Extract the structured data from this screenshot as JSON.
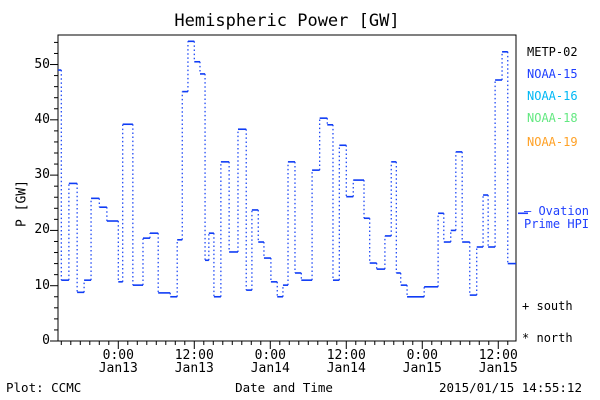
{
  "title": "Hemispheric Power [GW]",
  "footer": {
    "left": "Plot: CCMC",
    "center": "Date and Time",
    "right": "2015/01/15 14:55:12"
  },
  "legend": {
    "satellites": [
      {
        "label": "METP-02",
        "color": "#000000"
      },
      {
        "label": "NOAA-15",
        "color": "#1f3fff"
      },
      {
        "label": "NOAA-16",
        "color": "#00b8f5"
      },
      {
        "label": "NOAA-18",
        "color": "#63e881"
      },
      {
        "label": "NOAA-19",
        "color": "#ffa126"
      }
    ],
    "ovation": {
      "line1": "— Ovation",
      "line2": "Prime HPI",
      "color": "#1f3fff"
    },
    "markers": [
      {
        "symbol": "+",
        "label": "south"
      },
      {
        "symbol": "*",
        "label": "north"
      }
    ]
  },
  "colors": {
    "axis": "#000000",
    "curve": "#0f3cf5",
    "background": "#ffffff"
  },
  "chart_data": {
    "type": "line",
    "subtype": "step-stairs, solid horizontal segments joined by dotted vertical connectors",
    "series_name": "Ovation Prime HPI",
    "title": "Hemispheric Power [GW]",
    "xlabel": "Date and Time",
    "ylabel": "P [GW]",
    "x_unit": "hours since 2015-01-12 00:00 UT",
    "xlim": [
      14.48,
      86.8
    ],
    "ylim": [
      0,
      55.34
    ],
    "y_major_ticks": [
      0,
      10,
      20,
      30,
      40,
      50
    ],
    "y_minor_step": 2,
    "x_minor_step": 1.5,
    "x_major_ticks": [
      {
        "t": 24,
        "time": "0:00",
        "date": "Jan13"
      },
      {
        "t": 36,
        "time": "12:00",
        "date": "Jan13"
      },
      {
        "t": 48,
        "time": "0:00",
        "date": "Jan14"
      },
      {
        "t": 60,
        "time": "12:00",
        "date": "Jan14"
      },
      {
        "t": 72,
        "time": "0:00",
        "date": "Jan15"
      },
      {
        "t": 84,
        "time": "12:00",
        "date": "Jan15"
      }
    ],
    "ovation_marker_gw": 23.1,
    "grid": false,
    "legend_position": "right",
    "samples": [
      [
        14.3,
        49.0
      ],
      [
        15.0,
        11.0
      ],
      [
        16.2,
        28.5
      ],
      [
        17.5,
        8.8
      ],
      [
        18.6,
        11.0
      ],
      [
        19.7,
        25.8
      ],
      [
        21.0,
        24.2
      ],
      [
        22.2,
        21.7
      ],
      [
        24.0,
        10.7
      ],
      [
        24.7,
        39.2
      ],
      [
        26.3,
        10.1
      ],
      [
        27.9,
        18.6
      ],
      [
        29.0,
        19.5
      ],
      [
        30.3,
        8.7
      ],
      [
        32.2,
        8.0
      ],
      [
        33.3,
        18.3
      ],
      [
        34.1,
        45.1
      ],
      [
        35.0,
        54.2
      ],
      [
        36.0,
        50.5
      ],
      [
        36.9,
        48.3
      ],
      [
        37.7,
        14.6
      ],
      [
        38.3,
        19.5
      ],
      [
        39.1,
        8.0
      ],
      [
        40.2,
        32.4
      ],
      [
        41.5,
        16.1
      ],
      [
        42.9,
        38.3
      ],
      [
        44.2,
        9.2
      ],
      [
        45.1,
        23.7
      ],
      [
        46.1,
        17.9
      ],
      [
        47.0,
        15.0
      ],
      [
        48.1,
        10.7
      ],
      [
        49.1,
        8.0
      ],
      [
        50.0,
        10.1
      ],
      [
        50.8,
        32.4
      ],
      [
        51.9,
        12.3
      ],
      [
        52.9,
        11.0
      ],
      [
        54.6,
        30.9
      ],
      [
        55.8,
        40.3
      ],
      [
        57.0,
        39.1
      ],
      [
        57.9,
        11.0
      ],
      [
        58.9,
        35.4
      ],
      [
        60.0,
        26.1
      ],
      [
        61.1,
        29.1
      ],
      [
        62.8,
        22.2
      ],
      [
        63.7,
        14.1
      ],
      [
        64.8,
        13.0
      ],
      [
        66.1,
        19.0
      ],
      [
        67.1,
        32.4
      ],
      [
        67.9,
        12.3
      ],
      [
        68.6,
        10.1
      ],
      [
        69.6,
        8.0
      ],
      [
        72.3,
        9.8
      ],
      [
        74.5,
        23.1
      ],
      [
        75.4,
        17.9
      ],
      [
        76.5,
        20.0
      ],
      [
        77.3,
        34.2
      ],
      [
        78.3,
        17.9
      ],
      [
        79.5,
        8.3
      ],
      [
        80.6,
        17.0
      ],
      [
        81.6,
        26.4
      ],
      [
        82.4,
        17.0
      ],
      [
        83.5,
        47.2
      ],
      [
        84.6,
        52.3
      ],
      [
        85.5,
        14.0
      ]
    ]
  }
}
